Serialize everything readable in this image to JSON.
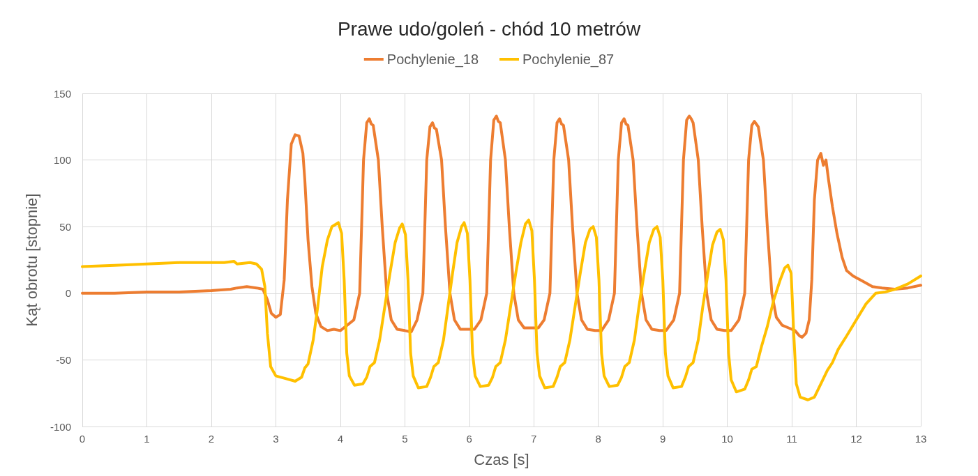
{
  "chart_data": {
    "type": "line",
    "title": "Prawe udo/goleń - chód 10 metrów",
    "xlabel": "Czas [s]",
    "ylabel": "Kąt obrotu [stopnie]",
    "xlim": [
      0,
      13
    ],
    "xticks": [
      0,
      1,
      2,
      3,
      4,
      5,
      6,
      7,
      8,
      9,
      10,
      11,
      12,
      13
    ],
    "ylim": [
      -100,
      150
    ],
    "yticks": [
      -100,
      -50,
      0,
      50,
      100,
      150
    ],
    "grid": true,
    "legend": "top",
    "marker": "none",
    "line_style": "solid",
    "series": [
      {
        "name": "Pochylenie_18",
        "color": "#ed7d31",
        "x": [
          0,
          0.5,
          1,
          1.5,
          2,
          2.3,
          2.4,
          2.55,
          2.7,
          2.8,
          2.87,
          2.93,
          3.0,
          3.07,
          3.13,
          3.18,
          3.24,
          3.3,
          3.36,
          3.42,
          3.45,
          3.5,
          3.56,
          3.62,
          3.7,
          3.8,
          3.9,
          4.0,
          4.08,
          4.21,
          4.3,
          4.36,
          4.41,
          4.45,
          4.48,
          4.51,
          4.59,
          4.65,
          4.72,
          4.79,
          4.88,
          5.0,
          5.1,
          5.19,
          5.28,
          5.34,
          5.39,
          5.43,
          5.46,
          5.49,
          5.57,
          5.63,
          5.7,
          5.77,
          5.86,
          5.98,
          6.08,
          6.18,
          6.27,
          6.33,
          6.38,
          6.42,
          6.45,
          6.48,
          6.56,
          6.62,
          6.69,
          6.76,
          6.85,
          6.97,
          7.07,
          7.16,
          7.25,
          7.31,
          7.36,
          7.4,
          7.43,
          7.46,
          7.54,
          7.6,
          7.67,
          7.74,
          7.83,
          7.95,
          8.05,
          8.16,
          8.25,
          8.31,
          8.36,
          8.4,
          8.43,
          8.46,
          8.54,
          8.6,
          8.67,
          8.74,
          8.83,
          8.95,
          9.05,
          9.17,
          9.26,
          9.32,
          9.37,
          9.41,
          9.44,
          9.47,
          9.55,
          9.61,
          9.68,
          9.75,
          9.84,
          9.96,
          10.06,
          10.18,
          10.27,
          10.33,
          10.38,
          10.42,
          10.45,
          10.48,
          10.56,
          10.62,
          10.69,
          10.76,
          10.85,
          10.95,
          11.05,
          11.12,
          11.16,
          11.22,
          11.27,
          11.31,
          11.35,
          11.4,
          11.45,
          11.49,
          11.53,
          11.57,
          11.63,
          11.7,
          11.78,
          11.85,
          11.95,
          12.1,
          12.25,
          12.4,
          12.6,
          12.8,
          13.0
        ],
        "values": [
          0,
          0,
          1,
          1,
          2,
          3,
          4,
          5,
          4,
          3,
          -5,
          -15,
          -18,
          -16,
          10,
          70,
          112,
          119,
          118,
          105,
          85,
          40,
          5,
          -15,
          -25,
          -28,
          -27,
          -28,
          -25,
          -20,
          0,
          100,
          128,
          131,
          127,
          126,
          100,
          50,
          0,
          -20,
          -27,
          -28,
          -29,
          -20,
          0,
          100,
          125,
          128,
          124,
          123,
          100,
          50,
          0,
          -20,
          -27,
          -27,
          -27,
          -20,
          0,
          100,
          130,
          133,
          129,
          128,
          100,
          50,
          0,
          -20,
          -26,
          -26,
          -26,
          -20,
          0,
          100,
          128,
          131,
          127,
          126,
          100,
          50,
          0,
          -20,
          -27,
          -28,
          -28,
          -20,
          0,
          100,
          128,
          131,
          127,
          126,
          100,
          50,
          0,
          -20,
          -27,
          -28,
          -28,
          -20,
          0,
          100,
          130,
          133,
          131,
          128,
          100,
          50,
          0,
          -20,
          -27,
          -28,
          -28,
          -20,
          0,
          100,
          126,
          129,
          127,
          125,
          100,
          50,
          0,
          -18,
          -24,
          -26,
          -28,
          -32,
          -33,
          -30,
          -20,
          10,
          70,
          100,
          105,
          96,
          100,
          85,
          65,
          45,
          27,
          17,
          13,
          9,
          5,
          4,
          3,
          4,
          6
        ]
      },
      {
        "name": "Pochylenie_87",
        "color": "#ffc000",
        "x": [
          0,
          0.5,
          1,
          1.5,
          2,
          2.2,
          2.35,
          2.4,
          2.6,
          2.7,
          2.78,
          2.83,
          2.87,
          2.92,
          3.0,
          3.15,
          3.3,
          3.4,
          3.45,
          3.5,
          3.58,
          3.65,
          3.72,
          3.8,
          3.87,
          3.97,
          4.02,
          4.06,
          4.1,
          4.14,
          4.22,
          4.35,
          4.41,
          4.46,
          4.53,
          4.61,
          4.69,
          4.77,
          4.85,
          4.92,
          4.96,
          5.01,
          5.05,
          5.09,
          5.13,
          5.21,
          5.34,
          5.4,
          5.45,
          5.52,
          5.6,
          5.67,
          5.74,
          5.81,
          5.88,
          5.92,
          5.97,
          6.01,
          6.05,
          6.09,
          6.17,
          6.3,
          6.36,
          6.41,
          6.48,
          6.56,
          6.64,
          6.72,
          6.8,
          6.87,
          6.92,
          6.97,
          7.01,
          7.05,
          7.09,
          7.17,
          7.3,
          7.36,
          7.41,
          7.48,
          7.56,
          7.64,
          7.72,
          7.8,
          7.87,
          7.92,
          7.97,
          8.01,
          8.05,
          8.09,
          8.17,
          8.3,
          8.36,
          8.41,
          8.48,
          8.56,
          8.63,
          8.71,
          8.79,
          8.86,
          8.91,
          8.96,
          9.0,
          9.04,
          9.08,
          9.16,
          9.29,
          9.35,
          9.4,
          9.47,
          9.55,
          9.62,
          9.7,
          9.77,
          9.84,
          9.89,
          9.94,
          9.98,
          10.02,
          10.06,
          10.14,
          10.27,
          10.33,
          10.38,
          10.45,
          10.53,
          10.62,
          10.72,
          10.82,
          10.89,
          10.94,
          10.99,
          11.03,
          11.07,
          11.13,
          11.25,
          11.35,
          11.45,
          11.55,
          11.63,
          11.72,
          11.85,
          12.0,
          12.15,
          12.3,
          12.45,
          12.6,
          12.8,
          13.0
        ],
        "values": [
          20,
          21,
          22,
          23,
          23,
          23,
          24,
          22,
          23,
          22,
          18,
          5,
          -30,
          -55,
          -62,
          -64,
          -66,
          -63,
          -56,
          -53,
          -35,
          -10,
          20,
          40,
          50,
          53,
          45,
          10,
          -45,
          -62,
          -69,
          -68,
          -63,
          -55,
          -52,
          -35,
          -10,
          15,
          38,
          49,
          52,
          44,
          10,
          -45,
          -62,
          -71,
          -70,
          -63,
          -55,
          -52,
          -35,
          -10,
          15,
          38,
          50,
          53,
          45,
          10,
          -45,
          -62,
          -70,
          -69,
          -63,
          -55,
          -52,
          -35,
          -10,
          15,
          38,
          52,
          55,
          47,
          10,
          -45,
          -62,
          -71,
          -70,
          -63,
          -55,
          -52,
          -35,
          -10,
          15,
          38,
          48,
          50,
          42,
          10,
          -45,
          -62,
          -70,
          -69,
          -63,
          -55,
          -52,
          -35,
          -10,
          15,
          38,
          48,
          50,
          42,
          10,
          -45,
          -62,
          -71,
          -70,
          -63,
          -55,
          -52,
          -35,
          -10,
          15,
          36,
          46,
          48,
          40,
          10,
          -45,
          -65,
          -74,
          -72,
          -65,
          -57,
          -55,
          -40,
          -25,
          -5,
          10,
          19,
          21,
          15,
          -30,
          -68,
          -78,
          -80,
          -78,
          -68,
          -58,
          -52,
          -42,
          -32,
          -20,
          -8,
          0,
          1,
          3,
          7,
          13
        ]
      }
    ]
  }
}
